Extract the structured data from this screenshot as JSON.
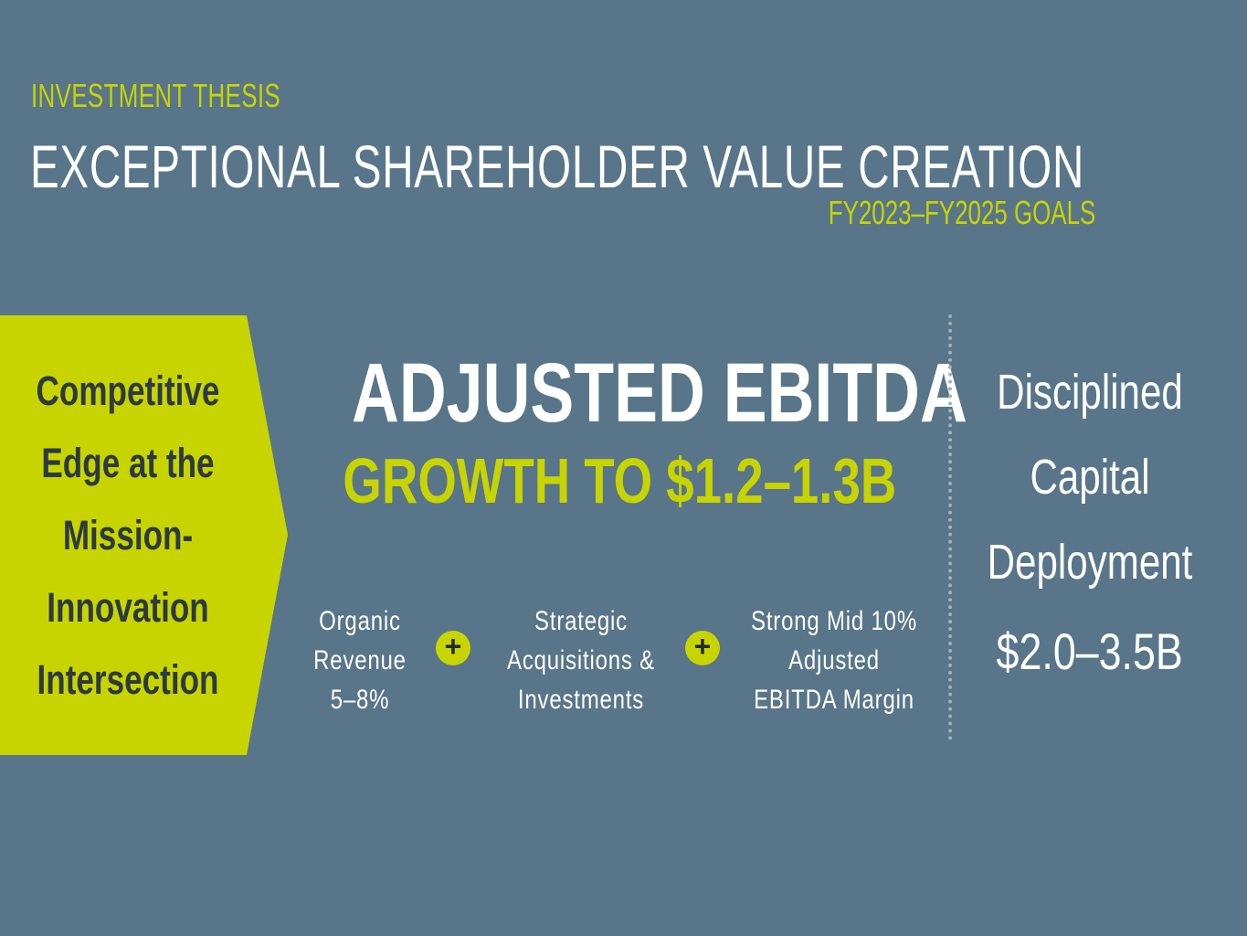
{
  "header": {
    "eyebrow": "INVESTMENT THESIS",
    "title": "EXCEPTIONAL SHAREHOLDER VALUE CREATION",
    "goals_period": "FY2023–FY2025",
    "goals_label": "GOALS"
  },
  "arrow_panel": {
    "lines": [
      "Competitive",
      "Edge at the",
      "Mission-",
      "Innovation",
      "Intersection"
    ]
  },
  "ebitda": {
    "title": "ADJUSTED EBITDA",
    "subtitle": "GROWTH TO $1.2–1.3B"
  },
  "components": {
    "organic": [
      "Organic",
      "Revenue",
      "5–8%"
    ],
    "acquisitions": [
      "Strategic",
      "Acquisitions &",
      "Investments"
    ],
    "margin": [
      "Strong Mid 10%",
      "Adjusted",
      "EBITDA Margin"
    ],
    "plus_symbol": "+"
  },
  "capital": {
    "lines": [
      "Disciplined",
      "Capital",
      "Deployment"
    ],
    "amount": "$2.0–3.5B"
  },
  "colors": {
    "background": "#587589",
    "accent": "#c8d400",
    "dark_text": "#2b3a43",
    "light_text": "#ffffff"
  }
}
